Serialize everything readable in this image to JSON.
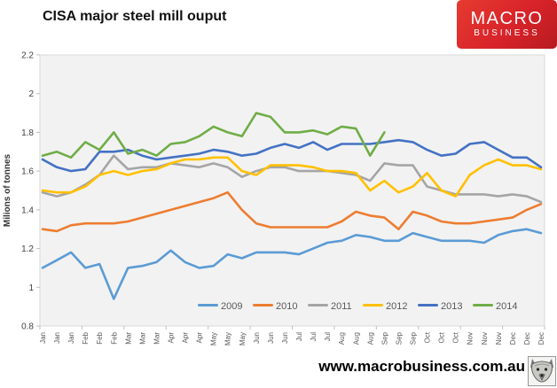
{
  "header": {
    "title": "CISA major steel mill ouput",
    "logo": {
      "line1": "MACRO",
      "line2": "BUSINESS",
      "bg_color": "#d8232a",
      "text_color": "#ffffff"
    }
  },
  "footer": {
    "url": "www.macrobusiness.com.au"
  },
  "chart_data": {
    "type": "line",
    "title": "CISA major steel mill ouput",
    "xlabel": "",
    "ylabel": "Milions of tonnes",
    "ylim": [
      0.8,
      2.2
    ],
    "yticks": [
      0.8,
      1,
      1.2,
      1.4,
      1.6,
      1.8,
      2,
      2.2
    ],
    "grid": false,
    "plot_bg": "#f2f2f2",
    "plot_border": "#d9d9d9",
    "axis_color": "#bfbfbf",
    "legend_position": "bottom-inside",
    "x_note": "three ten-day readings per month",
    "categories": [
      "Jan",
      "Jan",
      "Jan",
      "Feb",
      "Feb",
      "Feb",
      "Mar",
      "Mar",
      "Mar",
      "Apr",
      "Apr",
      "Apr",
      "May",
      "May",
      "May",
      "Jun",
      "Jun",
      "Jun",
      "Jul",
      "Jul",
      "Jul",
      "Aug",
      "Aug",
      "Aug",
      "Sep",
      "Sep",
      "Sep",
      "Oct",
      "Oct",
      "Oct",
      "Nov",
      "Nov",
      "Nov",
      "Dec",
      "Dec",
      "Dec"
    ],
    "series": [
      {
        "name": "2009",
        "color": "#5B9BD5",
        "values": [
          1.1,
          1.14,
          1.18,
          1.1,
          1.12,
          0.94,
          1.1,
          1.11,
          1.13,
          1.19,
          1.13,
          1.1,
          1.11,
          1.17,
          1.15,
          1.18,
          1.18,
          1.18,
          1.17,
          1.2,
          1.23,
          1.24,
          1.27,
          1.26,
          1.24,
          1.24,
          1.28,
          1.26,
          1.24,
          1.24,
          1.24,
          1.23,
          1.27,
          1.29,
          1.3,
          1.28
        ]
      },
      {
        "name": "2010",
        "color": "#ED7D31",
        "values": [
          1.3,
          1.29,
          1.32,
          1.33,
          1.33,
          1.33,
          1.34,
          1.36,
          1.38,
          1.4,
          1.42,
          1.44,
          1.46,
          1.49,
          1.4,
          1.33,
          1.31,
          1.31,
          1.31,
          1.31,
          1.31,
          1.34,
          1.39,
          1.37,
          1.36,
          1.3,
          1.39,
          1.37,
          1.34,
          1.33,
          1.33,
          1.34,
          1.35,
          1.36,
          1.4,
          1.43
        ]
      },
      {
        "name": "2011",
        "color": "#A5A5A5",
        "values": [
          1.49,
          1.47,
          1.49,
          1.53,
          1.58,
          1.68,
          1.61,
          1.62,
          1.62,
          1.64,
          1.63,
          1.62,
          1.64,
          1.62,
          1.57,
          1.6,
          1.62,
          1.62,
          1.6,
          1.6,
          1.6,
          1.59,
          1.58,
          1.55,
          1.64,
          1.63,
          1.63,
          1.52,
          1.5,
          1.48,
          1.48,
          1.48,
          1.47,
          1.48,
          1.47,
          1.44
        ]
      },
      {
        "name": "2012",
        "color": "#FFC000",
        "values": [
          1.5,
          1.49,
          1.49,
          1.52,
          1.58,
          1.6,
          1.58,
          1.6,
          1.61,
          1.64,
          1.66,
          1.66,
          1.67,
          1.67,
          1.6,
          1.58,
          1.63,
          1.63,
          1.63,
          1.62,
          1.6,
          1.6,
          1.59,
          1.5,
          1.55,
          1.49,
          1.52,
          1.59,
          1.5,
          1.47,
          1.58,
          1.63,
          1.66,
          1.63,
          1.63,
          1.61
        ]
      },
      {
        "name": "2013",
        "color": "#4472C4",
        "values": [
          1.66,
          1.62,
          1.6,
          1.61,
          1.7,
          1.7,
          1.71,
          1.68,
          1.66,
          1.67,
          1.68,
          1.69,
          1.71,
          1.7,
          1.68,
          1.69,
          1.72,
          1.74,
          1.72,
          1.75,
          1.71,
          1.74,
          1.74,
          1.74,
          1.75,
          1.76,
          1.75,
          1.71,
          1.68,
          1.69,
          1.74,
          1.75,
          1.71,
          1.67,
          1.67,
          1.62
        ]
      },
      {
        "name": "2014",
        "color": "#70AD47",
        "values": [
          1.68,
          1.7,
          1.67,
          1.75,
          1.71,
          1.8,
          1.69,
          1.71,
          1.68,
          1.74,
          1.75,
          1.78,
          1.83,
          1.8,
          1.78,
          1.9,
          1.88,
          1.8,
          1.8,
          1.81,
          1.79,
          1.83,
          1.82,
          1.68,
          1.8,
          null,
          null,
          null,
          null,
          null,
          null,
          null,
          null,
          null,
          null,
          null
        ]
      }
    ]
  }
}
